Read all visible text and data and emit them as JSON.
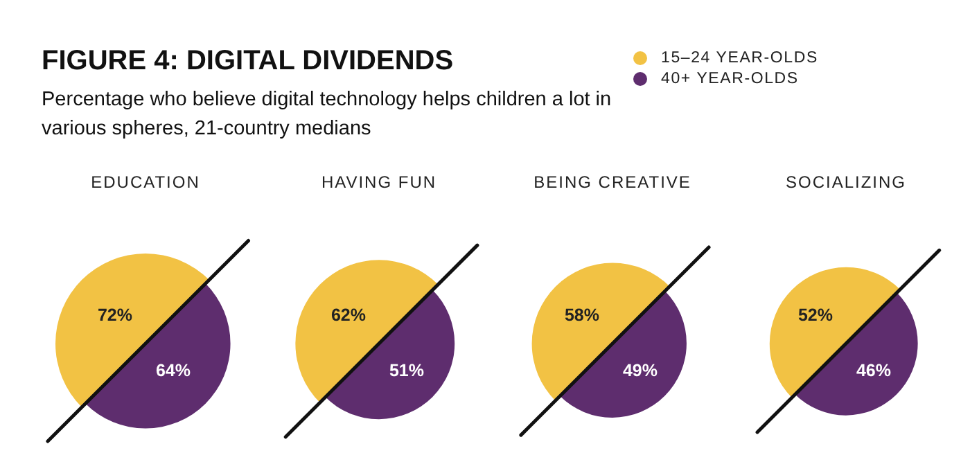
{
  "chart_data": {
    "type": "other",
    "title": "FIGURE 4: DIGITAL DIVIDENDS",
    "subtitle": "Percentage who believe digital technology helps children a lot in various spheres, 21-country medians",
    "categories": [
      "EDUCATION",
      "HAVING FUN",
      "BEING CREATIVE",
      "SOCIALIZING"
    ],
    "series": [
      {
        "name": "15–24 YEAR-OLDS",
        "color": "#f2c244",
        "values": [
          72,
          62,
          58,
          52
        ],
        "value_labels": [
          "72%",
          "62%",
          "58%",
          "52%"
        ]
      },
      {
        "name": "40+ YEAR-OLDS",
        "color": "#5e2d6e",
        "values": [
          64,
          51,
          49,
          46
        ],
        "value_labels": [
          "64%",
          "51%",
          "49%",
          "46%"
        ]
      }
    ],
    "legend": "top right"
  }
}
